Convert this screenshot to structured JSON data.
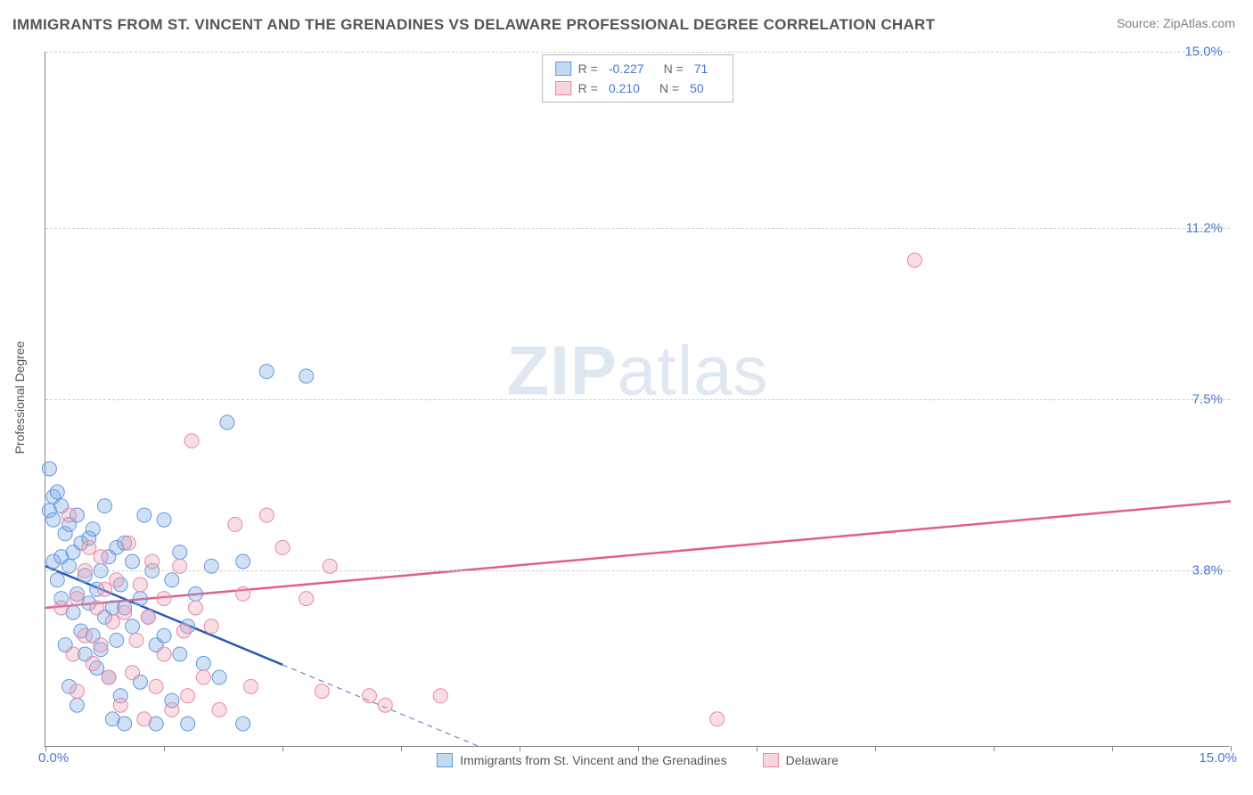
{
  "title": "IMMIGRANTS FROM ST. VINCENT AND THE GRENADINES VS DELAWARE PROFESSIONAL DEGREE CORRELATION CHART",
  "source": "Source: ZipAtlas.com",
  "watermark": {
    "bold": "ZIP",
    "light": "atlas"
  },
  "y_axis_title": "Professional Degree",
  "chart": {
    "type": "scatter",
    "background_color": "#ffffff",
    "grid_color": "#cccccc",
    "axis_color": "#888888",
    "xlim": [
      0.0,
      15.0
    ],
    "ylim": [
      0.0,
      15.0
    ],
    "x_ticks": {
      "positions": [
        0.0,
        1.5,
        3.0,
        4.5,
        6.0,
        7.5,
        9.0,
        10.5,
        12.0,
        13.5,
        15.0
      ],
      "labels_shown": {
        "first": "0.0%",
        "last": "15.0%"
      }
    },
    "y_ticks": {
      "positions": [
        3.8,
        7.5,
        11.2,
        15.0
      ],
      "labels": [
        "3.8%",
        "7.5%",
        "11.2%",
        "15.0%"
      ]
    },
    "tick_label_color": "#4a76d4",
    "tick_label_fontsize": 15,
    "series": [
      {
        "name": "Immigrants from St. Vincent and the Grenadines",
        "color_fill": "rgba(120,170,230,0.35)",
        "color_stroke": "#6699dd",
        "marker_radius": 8,
        "correlation_R": "-0.227",
        "N": "71",
        "regression": {
          "x1": 0.0,
          "y1": 3.9,
          "x2": 5.5,
          "y2": 0.0,
          "dashed_after_x": 3.0,
          "solid_color": "#2b5bb8",
          "solid_width": 2.5,
          "dashed_color": "#6a8acb"
        },
        "points": [
          [
            0.05,
            6.0
          ],
          [
            0.05,
            5.1
          ],
          [
            0.1,
            5.4
          ],
          [
            0.1,
            4.9
          ],
          [
            0.1,
            4.0
          ],
          [
            0.15,
            5.5
          ],
          [
            0.15,
            3.6
          ],
          [
            0.2,
            5.2
          ],
          [
            0.2,
            4.1
          ],
          [
            0.2,
            3.2
          ],
          [
            0.25,
            4.6
          ],
          [
            0.25,
            2.2
          ],
          [
            0.3,
            4.8
          ],
          [
            0.3,
            3.9
          ],
          [
            0.3,
            1.3
          ],
          [
            0.35,
            4.2
          ],
          [
            0.35,
            2.9
          ],
          [
            0.4,
            5.0
          ],
          [
            0.4,
            3.3
          ],
          [
            0.4,
            0.9
          ],
          [
            0.45,
            4.4
          ],
          [
            0.45,
            2.5
          ],
          [
            0.5,
            3.7
          ],
          [
            0.5,
            2.0
          ],
          [
            0.55,
            4.5
          ],
          [
            0.55,
            3.1
          ],
          [
            0.6,
            4.7
          ],
          [
            0.6,
            2.4
          ],
          [
            0.65,
            3.4
          ],
          [
            0.65,
            1.7
          ],
          [
            0.7,
            3.8
          ],
          [
            0.7,
            2.1
          ],
          [
            0.75,
            5.2
          ],
          [
            0.75,
            2.8
          ],
          [
            0.8,
            4.1
          ],
          [
            0.8,
            1.5
          ],
          [
            0.85,
            3.0
          ],
          [
            0.85,
            0.6
          ],
          [
            0.9,
            4.3
          ],
          [
            0.9,
            2.3
          ],
          [
            0.95,
            3.5
          ],
          [
            0.95,
            1.1
          ],
          [
            1.0,
            4.4
          ],
          [
            1.0,
            3.0
          ],
          [
            1.0,
            0.5
          ],
          [
            1.1,
            4.0
          ],
          [
            1.1,
            2.6
          ],
          [
            1.2,
            3.2
          ],
          [
            1.2,
            1.4
          ],
          [
            1.25,
            5.0
          ],
          [
            1.3,
            2.8
          ],
          [
            1.35,
            3.8
          ],
          [
            1.4,
            2.2
          ],
          [
            1.4,
            0.5
          ],
          [
            1.5,
            4.9
          ],
          [
            1.5,
            2.4
          ],
          [
            1.6,
            3.6
          ],
          [
            1.6,
            1.0
          ],
          [
            1.7,
            4.2
          ],
          [
            1.7,
            2.0
          ],
          [
            1.8,
            2.6
          ],
          [
            1.8,
            0.5
          ],
          [
            1.9,
            3.3
          ],
          [
            2.0,
            1.8
          ],
          [
            2.1,
            3.9
          ],
          [
            2.2,
            1.5
          ],
          [
            2.3,
            7.0
          ],
          [
            2.5,
            0.5
          ],
          [
            2.8,
            8.1
          ],
          [
            3.3,
            8.0
          ],
          [
            2.5,
            4.0
          ]
        ]
      },
      {
        "name": "Delaware",
        "color_fill": "rgba(240,160,180,0.35)",
        "color_stroke": "#e68aa3",
        "marker_radius": 8,
        "correlation_R": "0.210",
        "N": "50",
        "regression": {
          "x1": 0.0,
          "y1": 3.0,
          "x2": 15.0,
          "y2": 5.3,
          "color": "#e06088",
          "width": 2.5
        },
        "points": [
          [
            0.2,
            3.0
          ],
          [
            0.3,
            5.0
          ],
          [
            0.35,
            2.0
          ],
          [
            0.4,
            3.2
          ],
          [
            0.4,
            1.2
          ],
          [
            0.5,
            3.8
          ],
          [
            0.5,
            2.4
          ],
          [
            0.55,
            4.3
          ],
          [
            0.6,
            1.8
          ],
          [
            0.65,
            3.0
          ],
          [
            0.7,
            4.1
          ],
          [
            0.7,
            2.2
          ],
          [
            0.75,
            3.4
          ],
          [
            0.8,
            1.5
          ],
          [
            0.85,
            2.7
          ],
          [
            0.9,
            3.6
          ],
          [
            0.95,
            0.9
          ],
          [
            1.0,
            2.9
          ],
          [
            1.05,
            4.4
          ],
          [
            1.1,
            1.6
          ],
          [
            1.15,
            2.3
          ],
          [
            1.2,
            3.5
          ],
          [
            1.25,
            0.6
          ],
          [
            1.3,
            2.8
          ],
          [
            1.35,
            4.0
          ],
          [
            1.4,
            1.3
          ],
          [
            1.5,
            3.2
          ],
          [
            1.5,
            2.0
          ],
          [
            1.6,
            0.8
          ],
          [
            1.7,
            3.9
          ],
          [
            1.75,
            2.5
          ],
          [
            1.8,
            1.1
          ],
          [
            1.85,
            6.6
          ],
          [
            1.9,
            3.0
          ],
          [
            2.0,
            1.5
          ],
          [
            2.1,
            2.6
          ],
          [
            2.2,
            0.8
          ],
          [
            2.4,
            4.8
          ],
          [
            2.5,
            3.3
          ],
          [
            2.6,
            1.3
          ],
          [
            2.8,
            5.0
          ],
          [
            3.0,
            4.3
          ],
          [
            3.3,
            3.2
          ],
          [
            3.5,
            1.2
          ],
          [
            3.6,
            3.9
          ],
          [
            4.1,
            1.1
          ],
          [
            4.3,
            0.9
          ],
          [
            5.0,
            1.1
          ],
          [
            8.5,
            0.6
          ],
          [
            11.0,
            10.5
          ]
        ]
      }
    ]
  },
  "bottom_legend": [
    {
      "swatch": "blue",
      "label": "Immigrants from St. Vincent and the Grenadines"
    },
    {
      "swatch": "pink",
      "label": "Delaware"
    }
  ]
}
